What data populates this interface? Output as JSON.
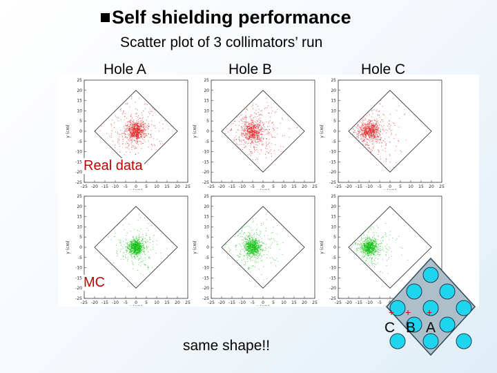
{
  "header": {
    "title": "Self shielding performance",
    "subtitle": "Scatter plot of 3 collimators’ run"
  },
  "holes": [
    "Hole A",
    "Hole B",
    "Hole C"
  ],
  "rows": {
    "real": "Real data",
    "mc": "MC"
  },
  "footer": "same shape!!",
  "collimator": {
    "markers": [
      "+",
      "+",
      "+"
    ],
    "letters": [
      "C",
      "B",
      "A"
    ]
  },
  "colors": {
    "real": "#e02020",
    "mc": "#10c010",
    "hole_fill": "#1fd5ef",
    "hole_stroke": "#1a3a4a"
  },
  "chart_data": {
    "type": "scatter",
    "title": "Scatter plot of 3 collimators’ run",
    "xlabel": "x (cm)",
    "ylabel": "y (cm)",
    "xlim": [
      -25,
      25
    ],
    "ylim": [
      -25,
      25
    ],
    "ticks": [
      -25,
      -20,
      -15,
      -10,
      -5,
      0,
      5,
      10,
      15,
      20,
      25
    ],
    "acceptance_half_diagonal": 20,
    "series": [
      {
        "name": "Hole A - Real data",
        "row": "real",
        "hole": "Hole A",
        "center": [
          0,
          0
        ],
        "spread": 2.2,
        "halo": 0.35
      },
      {
        "name": "Hole B - Real data",
        "row": "real",
        "hole": "Hole B",
        "center": [
          -5,
          0
        ],
        "spread": 2.4,
        "halo": 0.45
      },
      {
        "name": "Hole C - Real data",
        "row": "real",
        "hole": "Hole C",
        "center": [
          -10,
          0
        ],
        "spread": 2.3,
        "halo": 0.4
      },
      {
        "name": "Hole A - MC",
        "row": "mc",
        "hole": "Hole A",
        "center": [
          0,
          0
        ],
        "spread": 1.8,
        "halo": 0.25
      },
      {
        "name": "Hole B - MC",
        "row": "mc",
        "hole": "Hole B",
        "center": [
          -5,
          0
        ],
        "spread": 2.0,
        "halo": 0.3
      },
      {
        "name": "Hole C - MC",
        "row": "mc",
        "hole": "Hole C",
        "center": [
          -10,
          0
        ],
        "spread": 1.9,
        "halo": 0.3
      }
    ]
  }
}
